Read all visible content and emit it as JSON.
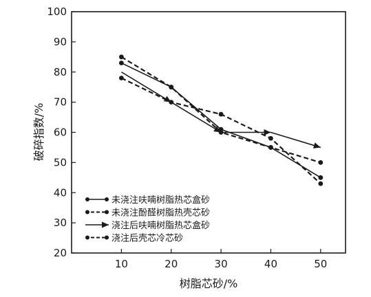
{
  "chart_data": {
    "type": "line",
    "title": "",
    "xlabel": "树脂芯砂/%",
    "ylabel": "破碎指数/%",
    "x": [
      10,
      20,
      30,
      40,
      50
    ],
    "xlim": [
      0,
      55
    ],
    "ylim": [
      20,
      100
    ],
    "xticks": [
      10,
      20,
      30,
      40,
      50
    ],
    "yticks": [
      20,
      30,
      40,
      50,
      60,
      70,
      80,
      90,
      100
    ],
    "grid": false,
    "legend_position": "bottom-left",
    "series": [
      {
        "name": "未浇注呋喃树脂热芯盒砂",
        "values": [
          83,
          75,
          61,
          55,
          45
        ],
        "line": "solid",
        "marker": "dot"
      },
      {
        "name": "未浇注酚醛树脂热壳芯砂",
        "values": [
          85,
          75,
          60,
          55,
          50
        ],
        "line": "dashed",
        "marker": "dot"
      },
      {
        "name": "浇注后呋喃树脂热芯盒砂",
        "values": [
          80,
          70,
          60,
          60,
          55
        ],
        "line": "solid",
        "marker": "arrow"
      },
      {
        "name": "浇注后壳芯冷芯砂",
        "values": [
          78,
          70,
          66,
          58,
          43
        ],
        "line": "dashed",
        "marker": "dot"
      }
    ]
  }
}
